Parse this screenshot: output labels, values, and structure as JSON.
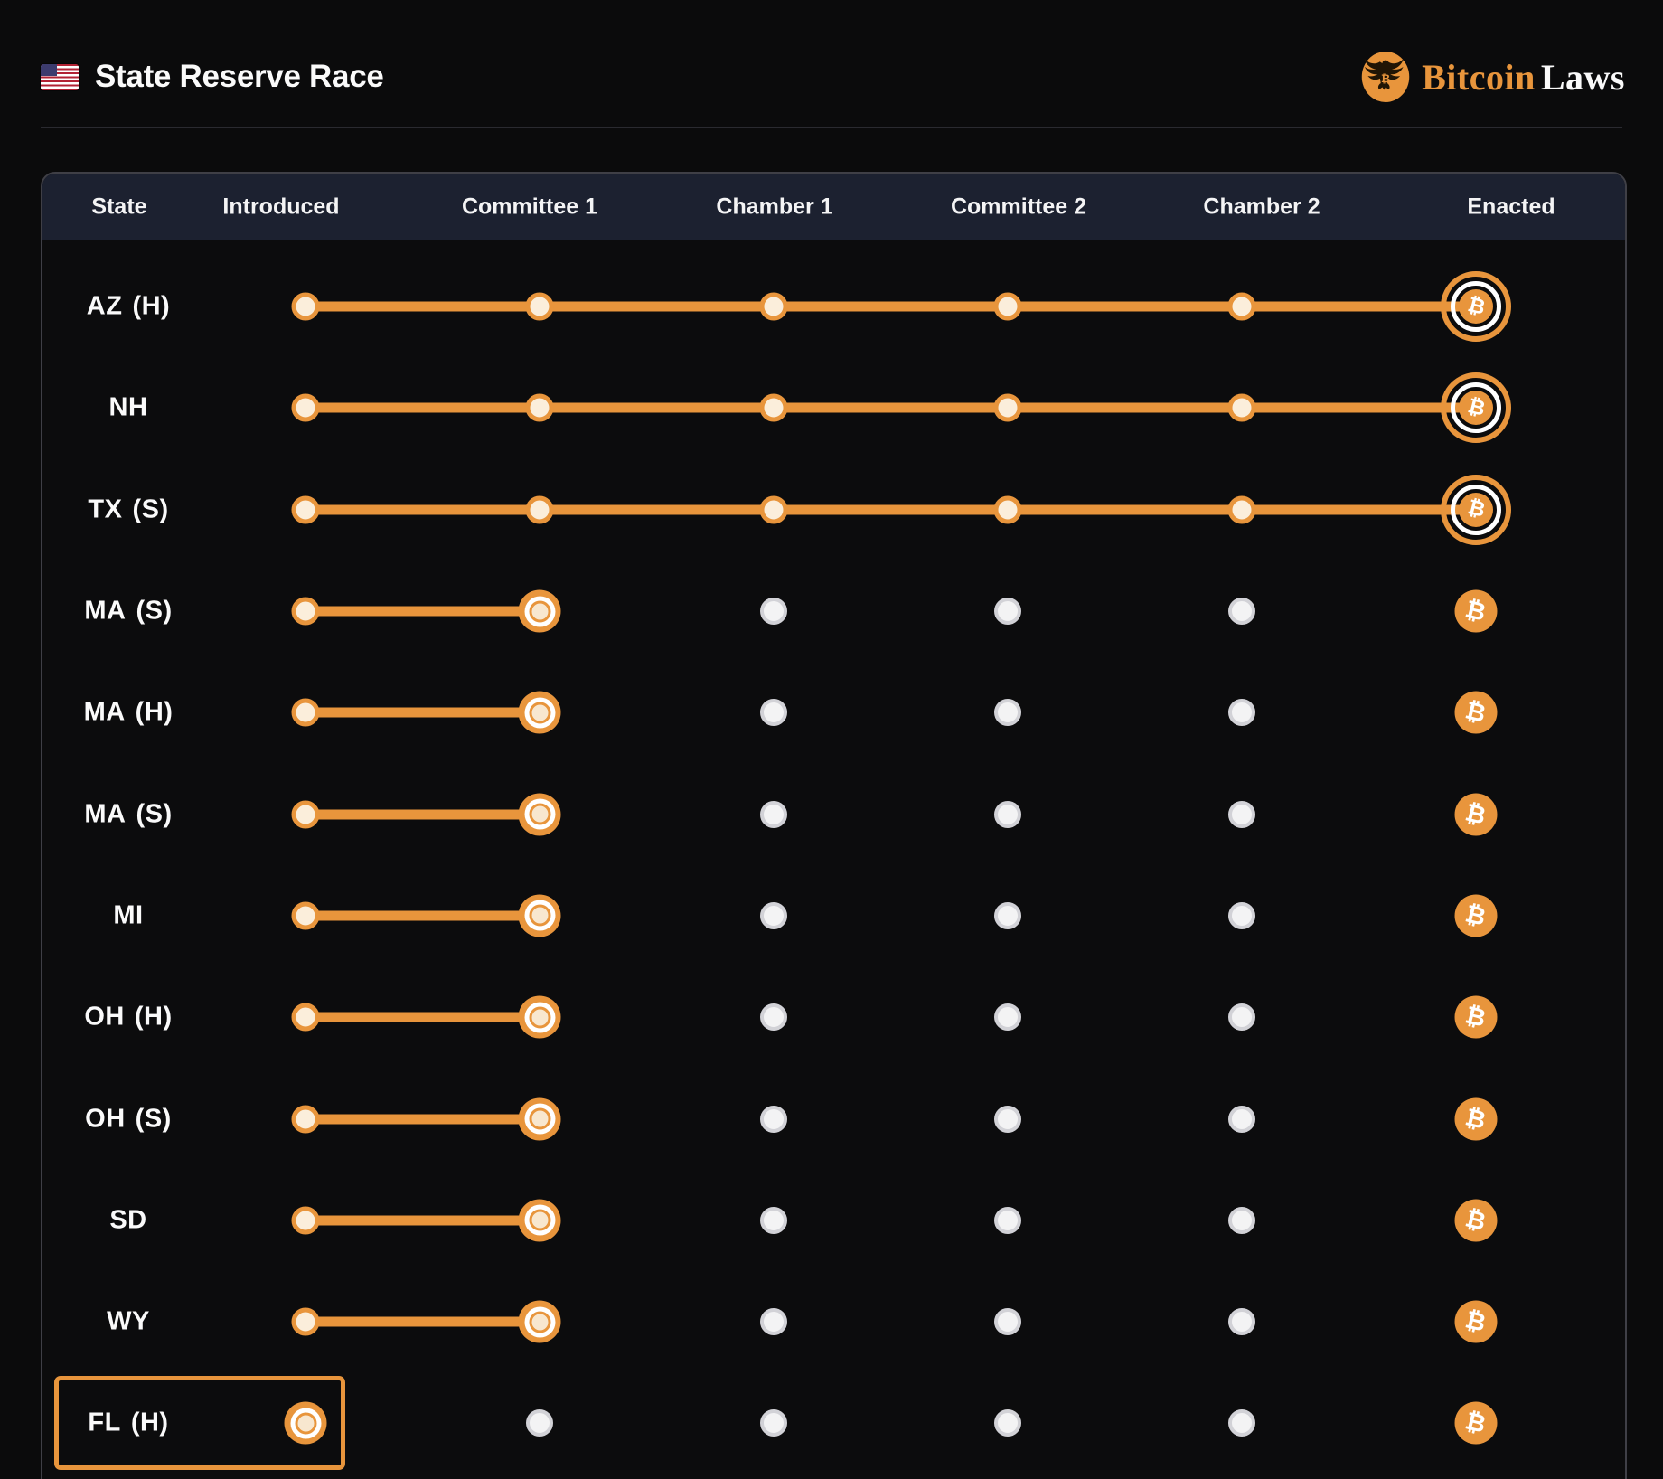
{
  "header": {
    "title": "State Reserve Race",
    "flag_icon": "us-flag",
    "brand_icon": "eagle-seal",
    "brand_primary": "Bitcoin",
    "brand_secondary": "Laws"
  },
  "colors": {
    "orange": "#e8953c",
    "cream": "#fbeedb",
    "header-bg": "#1c2130",
    "page-bg": "#0b0b0c",
    "pending-fill": "#f3f3f4",
    "pending-border": "#d2d2d7"
  },
  "bitcoin_symbol": "₿",
  "table": {
    "columns": [
      "State",
      "Introduced",
      "Committee 1",
      "Chamber 1",
      "Committee 2",
      "Chamber 2",
      "Enacted"
    ],
    "stages": [
      "Introduced",
      "Committee 1",
      "Chamber 1",
      "Committee 2",
      "Chamber 2",
      "Enacted"
    ],
    "rows": [
      {
        "state": "AZ",
        "suffix": "(H)",
        "stage_index": 5,
        "progress_label": "Enacted",
        "highlight": false
      },
      {
        "state": "NH",
        "suffix": "",
        "stage_index": 5,
        "progress_label": "Enacted",
        "highlight": false
      },
      {
        "state": "TX",
        "suffix": "(S)",
        "stage_index": 5,
        "progress_label": "Enacted",
        "highlight": false
      },
      {
        "state": "MA",
        "suffix": "(S)",
        "stage_index": 1,
        "progress_label": "Committee 1",
        "highlight": false
      },
      {
        "state": "MA",
        "suffix": "(H)",
        "stage_index": 1,
        "progress_label": "Committee 1",
        "highlight": false
      },
      {
        "state": "MA",
        "suffix": "(S)",
        "stage_index": 1,
        "progress_label": "Committee 1",
        "highlight": false
      },
      {
        "state": "MI",
        "suffix": "",
        "stage_index": 1,
        "progress_label": "Committee 1",
        "highlight": false
      },
      {
        "state": "OH",
        "suffix": "(H)",
        "stage_index": 1,
        "progress_label": "Committee 1",
        "highlight": false
      },
      {
        "state": "OH",
        "suffix": "(S)",
        "stage_index": 1,
        "progress_label": "Committee 1",
        "highlight": false
      },
      {
        "state": "SD",
        "suffix": "",
        "stage_index": 1,
        "progress_label": "Committee 1",
        "highlight": false
      },
      {
        "state": "WY",
        "suffix": "",
        "stage_index": 1,
        "progress_label": "Committee 1",
        "highlight": false
      },
      {
        "state": "FL",
        "suffix": "(H)",
        "stage_index": 0,
        "progress_label": "Introduced",
        "highlight": true
      }
    ]
  }
}
